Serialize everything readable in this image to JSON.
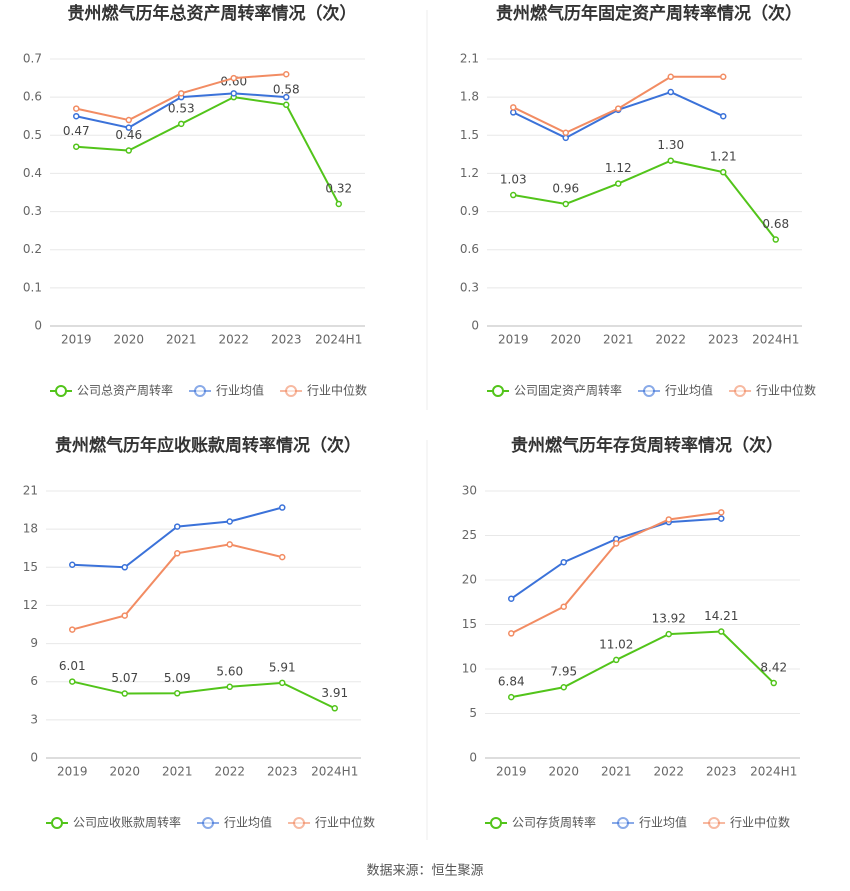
{
  "chart_data": [
    {
      "type": "line",
      "title": "贵州燃气历年总资产周转率情况（次）",
      "categories": [
        "2019",
        "2020",
        "2021",
        "2022",
        "2023",
        "2024H1"
      ],
      "ylim": [
        0,
        0.7
      ],
      "yticks": [
        0,
        0.1,
        0.2,
        0.3,
        0.4,
        0.5,
        0.6,
        0.7
      ],
      "grid": true,
      "legend": "bottom",
      "series": [
        {
          "name": "公司总资产周转率",
          "color": "#52c41a",
          "values": [
            0.47,
            0.46,
            0.53,
            0.6,
            0.58,
            0.32
          ],
          "value_labels": [
            "0.47",
            "0.46",
            "0.53",
            "0.60",
            "0.58",
            "0.32"
          ]
        },
        {
          "name": "行业均值",
          "color": "#3b72d9",
          "values": [
            0.55,
            0.52,
            0.6,
            0.61,
            0.6,
            null
          ]
        },
        {
          "name": "行业中位数",
          "color": "#f28c63",
          "values": [
            0.57,
            0.54,
            0.61,
            0.65,
            0.66,
            null
          ]
        }
      ]
    },
    {
      "type": "line",
      "title": "贵州燃气历年固定资产周转率情况（次）",
      "categories": [
        "2019",
        "2020",
        "2021",
        "2022",
        "2023",
        "2024H1"
      ],
      "ylim": [
        0,
        2.1
      ],
      "yticks": [
        0,
        0.3,
        0.6,
        0.9,
        1.2,
        1.5,
        1.8,
        2.1
      ],
      "grid": true,
      "legend": "bottom",
      "series": [
        {
          "name": "公司固定资产周转率",
          "color": "#52c41a",
          "values": [
            1.03,
            0.96,
            1.12,
            1.3,
            1.21,
            0.68
          ],
          "value_labels": [
            "1.03",
            "0.96",
            "1.12",
            "1.30",
            "1.21",
            "0.68"
          ]
        },
        {
          "name": "行业均值",
          "color": "#3b72d9",
          "values": [
            1.68,
            1.48,
            1.7,
            1.84,
            1.65,
            null
          ]
        },
        {
          "name": "行业中位数",
          "color": "#f28c63",
          "values": [
            1.72,
            1.52,
            1.71,
            1.96,
            1.96,
            null
          ]
        }
      ]
    },
    {
      "type": "line",
      "title": "贵州燃气历年应收账款周转率情况（次）",
      "categories": [
        "2019",
        "2020",
        "2021",
        "2022",
        "2023",
        "2024H1"
      ],
      "ylim": [
        0,
        21
      ],
      "yticks": [
        0,
        3,
        6,
        9,
        12,
        15,
        18,
        21
      ],
      "grid": true,
      "legend": "bottom",
      "series": [
        {
          "name": "公司应收账款周转率",
          "color": "#52c41a",
          "values": [
            6.01,
            5.07,
            5.09,
            5.6,
            5.91,
            3.91
          ],
          "value_labels": [
            "6.01",
            "5.07",
            "5.09",
            "5.60",
            "5.91",
            "3.91"
          ]
        },
        {
          "name": "行业均值",
          "color": "#3b72d9",
          "values": [
            15.2,
            15.0,
            18.2,
            18.6,
            19.7,
            null
          ]
        },
        {
          "name": "行业中位数",
          "color": "#f28c63",
          "values": [
            10.1,
            11.2,
            16.1,
            16.8,
            15.8,
            null
          ]
        }
      ]
    },
    {
      "type": "line",
      "title": "贵州燃气历年存货周转率情况（次）",
      "categories": [
        "2019",
        "2020",
        "2021",
        "2022",
        "2023",
        "2024H1"
      ],
      "ylim": [
        0,
        30
      ],
      "yticks": [
        0,
        5,
        10,
        15,
        20,
        25,
        30
      ],
      "grid": true,
      "legend": "bottom",
      "series": [
        {
          "name": "公司存货周转率",
          "color": "#52c41a",
          "values": [
            6.84,
            7.95,
            11.02,
            13.92,
            14.21,
            8.42
          ],
          "value_labels": [
            "6.84",
            "7.95",
            "11.02",
            "13.92",
            "14.21",
            "8.42"
          ]
        },
        {
          "name": "行业均值",
          "color": "#3b72d9",
          "values": [
            17.9,
            22.0,
            24.6,
            26.5,
            26.9,
            null
          ]
        },
        {
          "name": "行业中位数",
          "color": "#f28c63",
          "values": [
            14.0,
            17.0,
            24.1,
            26.8,
            27.6,
            null
          ]
        }
      ]
    }
  ],
  "source": "数据来源：恒生聚源"
}
